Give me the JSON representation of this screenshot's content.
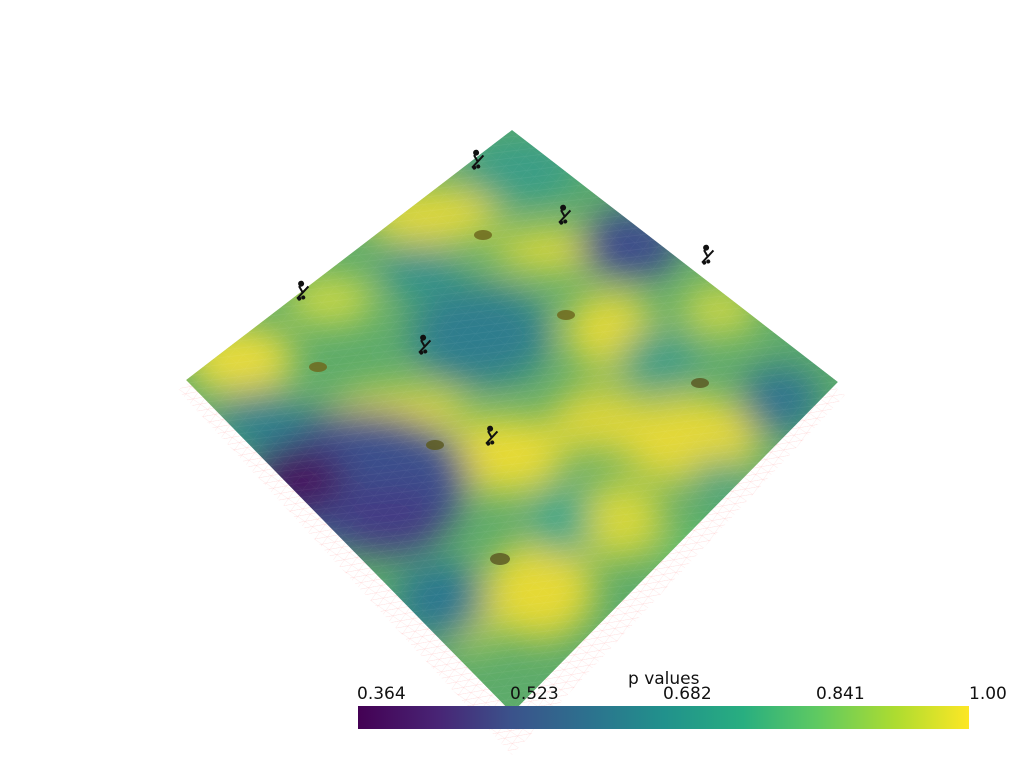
{
  "scalar_bar": {
    "title": "p values",
    "ticks": [
      "0.364",
      "0.523",
      "0.682",
      "0.841",
      "1.00"
    ],
    "range": [
      0.364,
      1.0
    ],
    "colormap": "viridis",
    "colors": [
      "#440154",
      "#3b528b",
      "#21918c",
      "#5ec962",
      "#fde725"
    ]
  },
  "scene": {
    "surface": "terrain-surface",
    "markers": {
      "turbines": 6,
      "discs": 6
    }
  }
}
